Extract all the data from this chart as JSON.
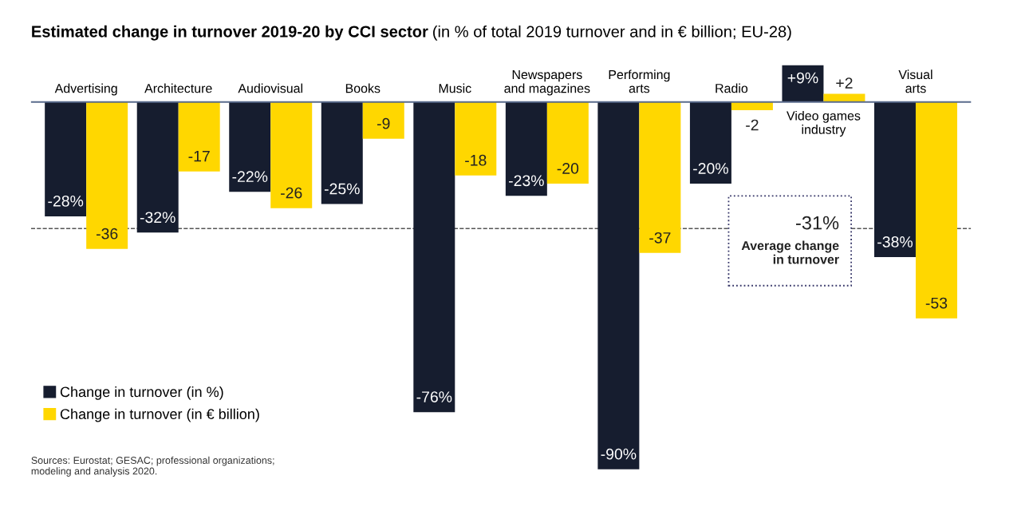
{
  "chart_data": {
    "type": "bar",
    "title": "Estimated change in turnover 2019-20 by CCI sector",
    "subtitle": "(in % of total 2019 turnover and in € billion; EU-28)",
    "categories": [
      "Advertising",
      "Architecture",
      "Audiovisual",
      "Books",
      "Music",
      "Newspapers\nand magazines",
      "Performing\narts",
      "Radio",
      "Video games\nindustry",
      "Visual\narts"
    ],
    "series": [
      {
        "name": "Change in turnover (in %)",
        "color": "#161d2f",
        "values": [
          -28,
          -32,
          -22,
          -25,
          -76,
          -23,
          -90,
          -20,
          9,
          -38
        ],
        "value_labels": [
          "-28%",
          "-32%",
          "-22%",
          "-25%",
          "-76%",
          "-23%",
          "-90%",
          "-20%",
          "+9%",
          "-38%"
        ]
      },
      {
        "name": "Change in turnover (in € billion)",
        "color": "#ffd700",
        "values": [
          -36,
          -17,
          -26,
          -9,
          -18,
          -20,
          -37,
          -2,
          2,
          -53
        ],
        "value_labels": [
          "-36",
          "-17",
          "-26",
          "-9",
          "-18",
          "-20",
          "-37",
          "-2",
          "+2",
          "-53"
        ]
      }
    ],
    "ref_lines": [
      {
        "axis": "y",
        "value": -31,
        "label": "-31%",
        "color": "#555555",
        "line_style": "dashed"
      }
    ],
    "annotations": [
      "Average change\nin turnover",
      "Sources: Eurostat; GESAC; professional organizations;\nmodeling and analysis 2020."
    ],
    "legend": "bottom left"
  }
}
